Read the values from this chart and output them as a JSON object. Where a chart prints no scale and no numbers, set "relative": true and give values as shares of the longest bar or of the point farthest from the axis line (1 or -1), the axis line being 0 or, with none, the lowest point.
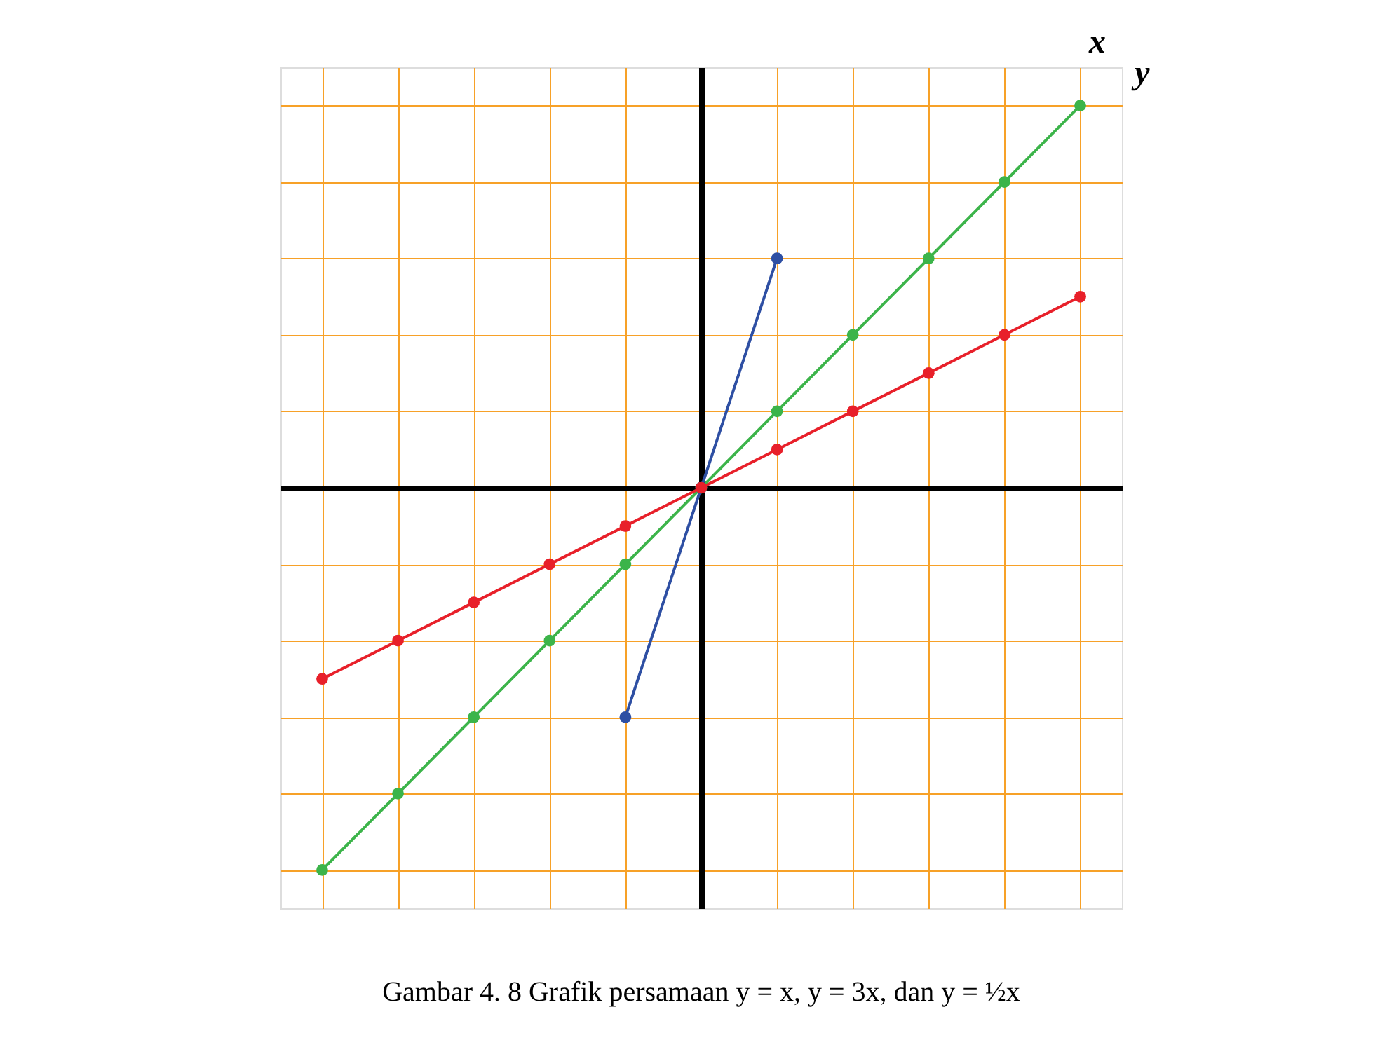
{
  "chart_data": {
    "type": "line",
    "xlabel": "x",
    "ylabel": "y",
    "relative": true,
    "grid": true,
    "marker": "circle",
    "annotations": [
      "Gambar 4. 8 Grafik persamaan y = x, y = 3x, dan y = ½x"
    ],
    "categories": [
      null,
      null,
      null,
      null,
      null,
      null,
      null,
      null,
      null,
      null,
      null
    ],
    "series": [
      {
        "color": "#3cb44a",
        "values": [
          -1,
          -0.8,
          -0.6,
          -0.4,
          -0.2,
          0,
          0.2,
          0.4,
          0.6,
          0.8,
          1
        ]
      },
      {
        "color": "#2e4fa3",
        "values": [
          null,
          null,
          null,
          null,
          -0.6,
          0,
          0.6,
          null,
          null,
          null,
          null
        ]
      },
      {
        "color": "#e8202a",
        "values": [
          -0.5,
          -0.4,
          -0.3,
          -0.2,
          -0.1,
          0,
          0.1,
          0.2,
          0.3,
          0.4,
          0.5
        ]
      }
    ]
  }
}
